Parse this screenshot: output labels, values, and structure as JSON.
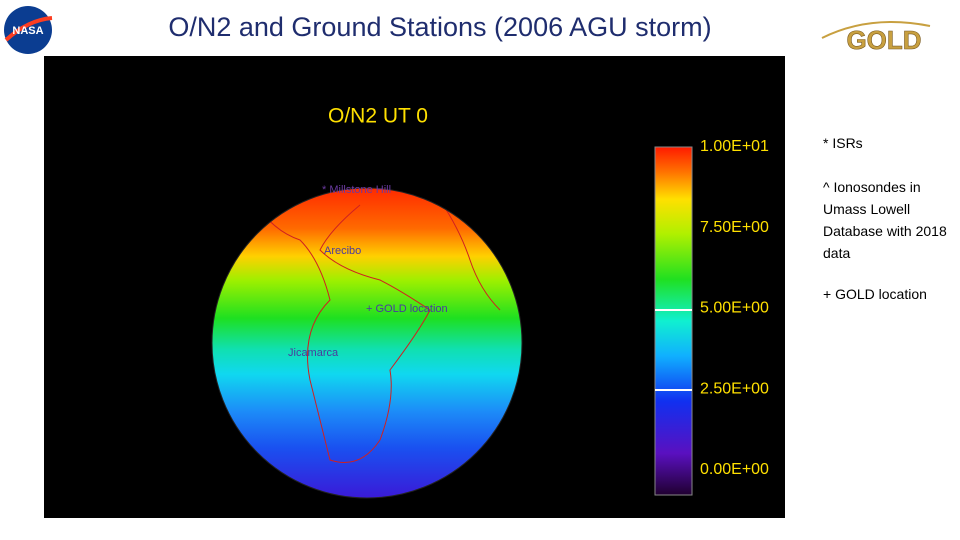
{
  "header": {
    "title": "O/N2 and Ground Stations (2006 AGU storm)",
    "left_logo": "NASA",
    "right_logo": "GOLD"
  },
  "figure": {
    "title": "O/N2  UT  0",
    "colorbar_labels": [
      "1.00E+01",
      "7.50E+00",
      "5.00E+00",
      "2.50E+00",
      "0.00E+00"
    ],
    "stations": [
      "* Millstone Hill",
      "Arecibo",
      "GOLD location",
      "Jicamarca"
    ]
  },
  "notes": [
    "* ISRs",
    "^  Ionosondes in Umass Lowell Database with 2018 data",
    "+ GOLD location"
  ]
}
